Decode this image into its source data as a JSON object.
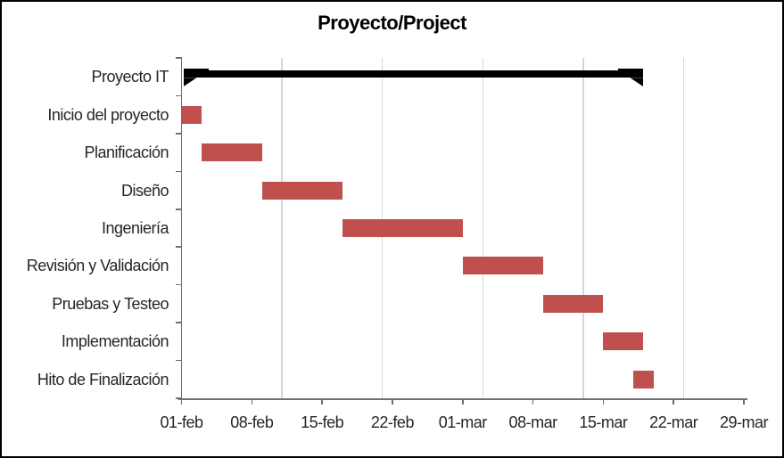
{
  "chart_data": {
    "type": "bar",
    "subtype": "gantt",
    "title": "Proyecto/Project",
    "orientation": "horizontal",
    "legend": "none",
    "grid": "vertical-major-only",
    "x_axis": {
      "kind": "date",
      "span_days": 56,
      "tick_step_days": 7,
      "tick_labels": [
        "01-feb",
        "08-feb",
        "15-feb",
        "22-feb",
        "01-mar",
        "08-mar",
        "15-mar",
        "22-mar",
        "29-mar"
      ],
      "gridline_days": [
        10,
        20,
        30,
        40,
        50
      ]
    },
    "categories": [
      "Proyecto IT",
      "Inicio del proyecto",
      "Planificación",
      "Diseño",
      "Ingeniería",
      "Revisión y Validación",
      "Pruebas y Testeo",
      "Implementación",
      "Hito de Finalización"
    ],
    "series": [
      {
        "name": "tasks",
        "bars": [
          {
            "category": "Proyecto IT",
            "start_day": 0,
            "end_day": 46,
            "style": "summary"
          },
          {
            "category": "Inicio del proyecto",
            "start_day": 0,
            "end_day": 2,
            "style": "task"
          },
          {
            "category": "Planificación",
            "start_day": 2,
            "end_day": 8,
            "style": "task"
          },
          {
            "category": "Diseño",
            "start_day": 8,
            "end_day": 16,
            "style": "task"
          },
          {
            "category": "Ingeniería",
            "start_day": 16,
            "end_day": 28,
            "style": "task"
          },
          {
            "category": "Revisión y Validación",
            "start_day": 28,
            "end_day": 36,
            "style": "task"
          },
          {
            "category": "Pruebas y Testeo",
            "start_day": 36,
            "end_day": 42,
            "style": "task"
          },
          {
            "category": "Implementación",
            "start_day": 42,
            "end_day": 46,
            "style": "task"
          },
          {
            "category": "Hito de Finalización",
            "start_day": 45,
            "end_day": 47,
            "style": "task"
          }
        ]
      }
    ],
    "colors": {
      "task_bar": "#C0504D",
      "summary_bar": "#000000",
      "gridline": "#D6D6D6",
      "axis_line": "#6F6F6F",
      "axis_text": "#262626",
      "title_text": "#000000",
      "background": "#FFFFFF",
      "frame_border": "#000000"
    }
  }
}
